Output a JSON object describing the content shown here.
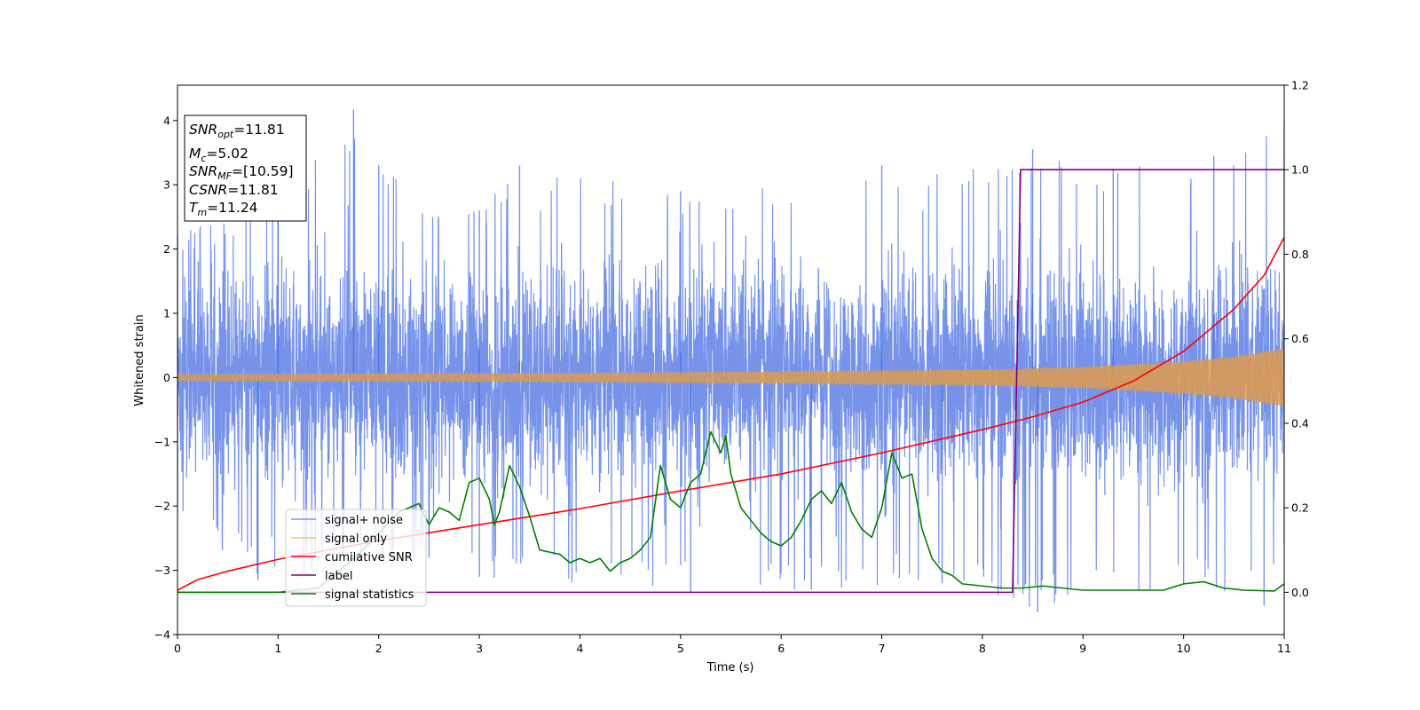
{
  "chart_data": {
    "type": "line",
    "xlabel": "Time (s)",
    "ylabel": "Whitened strain",
    "xlim": [
      0,
      11
    ],
    "ylim": [
      -4,
      4.55
    ],
    "y2lim": [
      -0.1,
      1.2
    ],
    "x_ticks": [
      "0",
      "1",
      "2",
      "3",
      "4",
      "5",
      "6",
      "7",
      "8",
      "9",
      "10",
      "11"
    ],
    "y_ticks": [
      "−4",
      "−3",
      "−2",
      "−1",
      "0",
      "1",
      "2",
      "3",
      "4"
    ],
    "y2_ticks": [
      "0.0",
      "0.2",
      "0.4",
      "0.6",
      "0.8",
      "1.0",
      "1.2"
    ],
    "legend_position": "lower-left",
    "grid": false,
    "info_box": {
      "snr_opt": {
        "var": "SNR",
        "sub": "opt",
        "value": "=11.81"
      },
      "mc": {
        "var": "M",
        "sub": "c",
        "value": "=5.02"
      },
      "snr_mf": {
        "var": "SNR",
        "sub": "MF",
        "value": "=[10.59]"
      },
      "csnr": {
        "var": "CSNR",
        "sub": "",
        "value": "=11.81"
      },
      "tm": {
        "var": "T",
        "sub": "m",
        "value": "=11.24"
      }
    },
    "series": [
      {
        "name": "signal+ noise",
        "axis": "left",
        "color": "#4169e1",
        "style": "dense noise",
        "noise_envelope_peak": [
          [
            0,
            2.2
          ],
          [
            1,
            2.9
          ],
          [
            1.75,
            4.17
          ],
          [
            2,
            3.3
          ],
          [
            3,
            2.6
          ],
          [
            3.4,
            3.3
          ],
          [
            5,
            2.9
          ],
          [
            7,
            3.3
          ],
          [
            8.5,
            3.55
          ],
          [
            9.3,
            3.25
          ],
          [
            10.3,
            3.45
          ],
          [
            11,
            4.0
          ]
        ],
        "noise_envelope_trough": [
          [
            0,
            -2.1
          ],
          [
            0.8,
            -3.15
          ],
          [
            2.5,
            -2.8
          ],
          [
            3,
            -3.1
          ],
          [
            5.1,
            -3.35
          ],
          [
            6.3,
            -3.3
          ],
          [
            7.6,
            -3.2
          ],
          [
            8.55,
            -3.65
          ],
          [
            10,
            -3.2
          ],
          [
            10.8,
            -3.55
          ],
          [
            11,
            -2.6
          ]
        ]
      },
      {
        "name": "signal only",
        "axis": "left",
        "color": "#ffa040",
        "style": "chirp",
        "amplitude": [
          [
            0,
            0.05
          ],
          [
            2,
            0.06
          ],
          [
            4,
            0.07
          ],
          [
            6,
            0.09
          ],
          [
            8,
            0.12
          ],
          [
            9,
            0.16
          ],
          [
            10,
            0.25
          ],
          [
            10.5,
            0.32
          ],
          [
            11,
            0.45
          ]
        ]
      },
      {
        "name": "cumilative SNR",
        "axis": "right",
        "color": "#ff0000",
        "points": [
          [
            0,
            0.005
          ],
          [
            0.2,
            0.03
          ],
          [
            0.5,
            0.05
          ],
          [
            1,
            0.078
          ],
          [
            1.5,
            0.1
          ],
          [
            2,
            0.122
          ],
          [
            3,
            0.16
          ],
          [
            4,
            0.198
          ],
          [
            5,
            0.24
          ],
          [
            6,
            0.28
          ],
          [
            7,
            0.33
          ],
          [
            8,
            0.385
          ],
          [
            8.5,
            0.415
          ],
          [
            9,
            0.45
          ],
          [
            9.5,
            0.5
          ],
          [
            10,
            0.57
          ],
          [
            10.5,
            0.67
          ],
          [
            10.8,
            0.75
          ],
          [
            11,
            0.84
          ]
        ]
      },
      {
        "name": "label",
        "axis": "right",
        "color": "#800080",
        "points": [
          [
            0,
            0
          ],
          [
            8.3,
            0
          ],
          [
            8.38,
            1
          ],
          [
            11,
            1
          ]
        ]
      },
      {
        "name": "signal statistics",
        "axis": "right",
        "color": "#008000",
        "points": [
          [
            0,
            0.0
          ],
          [
            1.0,
            0.0
          ],
          [
            1.2,
            0.005
          ],
          [
            1.4,
            0.01
          ],
          [
            1.6,
            0.05
          ],
          [
            1.8,
            0.09
          ],
          [
            2.0,
            0.14
          ],
          [
            2.2,
            0.19
          ],
          [
            2.4,
            0.21
          ],
          [
            2.5,
            0.16
          ],
          [
            2.6,
            0.2
          ],
          [
            2.7,
            0.19
          ],
          [
            2.8,
            0.17
          ],
          [
            2.9,
            0.26
          ],
          [
            3.0,
            0.27
          ],
          [
            3.1,
            0.22
          ],
          [
            3.15,
            0.16
          ],
          [
            3.2,
            0.19
          ],
          [
            3.3,
            0.3
          ],
          [
            3.4,
            0.25
          ],
          [
            3.5,
            0.18
          ],
          [
            3.6,
            0.1
          ],
          [
            3.8,
            0.09
          ],
          [
            3.9,
            0.07
          ],
          [
            4.0,
            0.08
          ],
          [
            4.1,
            0.07
          ],
          [
            4.2,
            0.08
          ],
          [
            4.3,
            0.05
          ],
          [
            4.4,
            0.07
          ],
          [
            4.5,
            0.08
          ],
          [
            4.6,
            0.1
          ],
          [
            4.7,
            0.13
          ],
          [
            4.8,
            0.3
          ],
          [
            4.9,
            0.22
          ],
          [
            5.0,
            0.2
          ],
          [
            5.1,
            0.26
          ],
          [
            5.2,
            0.28
          ],
          [
            5.3,
            0.38
          ],
          [
            5.4,
            0.33
          ],
          [
            5.45,
            0.37
          ],
          [
            5.5,
            0.28
          ],
          [
            5.6,
            0.2
          ],
          [
            5.7,
            0.17
          ],
          [
            5.8,
            0.14
          ],
          [
            5.9,
            0.12
          ],
          [
            6.0,
            0.11
          ],
          [
            6.1,
            0.13
          ],
          [
            6.2,
            0.17
          ],
          [
            6.3,
            0.22
          ],
          [
            6.4,
            0.24
          ],
          [
            6.5,
            0.21
          ],
          [
            6.6,
            0.26
          ],
          [
            6.7,
            0.19
          ],
          [
            6.8,
            0.15
          ],
          [
            6.9,
            0.13
          ],
          [
            7.0,
            0.2
          ],
          [
            7.1,
            0.33
          ],
          [
            7.2,
            0.27
          ],
          [
            7.3,
            0.28
          ],
          [
            7.4,
            0.15
          ],
          [
            7.5,
            0.08
          ],
          [
            7.6,
            0.05
          ],
          [
            7.7,
            0.04
          ],
          [
            7.8,
            0.02
          ],
          [
            8.0,
            0.015
          ],
          [
            8.2,
            0.01
          ],
          [
            8.4,
            0.01
          ],
          [
            8.6,
            0.015
          ],
          [
            8.8,
            0.01
          ],
          [
            9.0,
            0.005
          ],
          [
            9.5,
            0.005
          ],
          [
            9.8,
            0.005
          ],
          [
            10.0,
            0.02
          ],
          [
            10.2,
            0.025
          ],
          [
            10.4,
            0.01
          ],
          [
            10.6,
            0.005
          ],
          [
            10.9,
            0.003
          ],
          [
            11.0,
            0.02
          ]
        ]
      }
    ]
  }
}
